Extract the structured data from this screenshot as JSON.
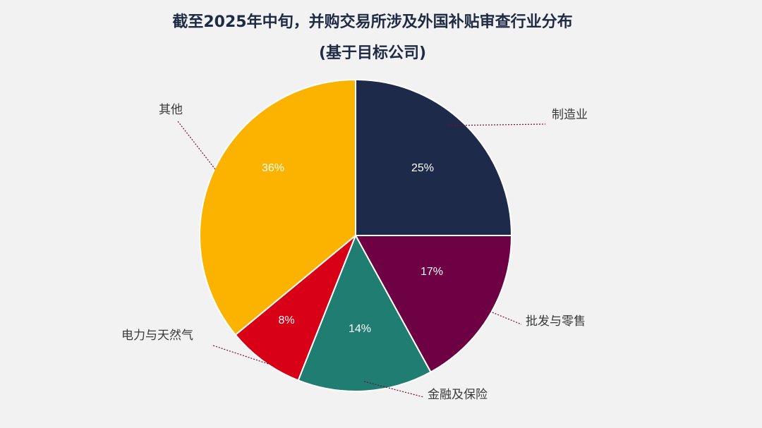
{
  "chart_data": {
    "type": "pie",
    "title": "截至2025年中旬，并购交易所涉及外国补贴审查行业分布",
    "subtitle": "(基于目标公司)",
    "slices": [
      {
        "label": "制造业",
        "value": 25,
        "display": "25%",
        "color": "#1e2a4a"
      },
      {
        "label": "批发与零售",
        "value": 17,
        "display": "17%",
        "color": "#6e0044"
      },
      {
        "label": "金融及保险",
        "value": 14,
        "display": "14%",
        "color": "#207d72"
      },
      {
        "label": "电力与天然气",
        "value": 8,
        "display": "8%",
        "color": "#d80016"
      },
      {
        "label": "其他",
        "value": 36,
        "display": "36%",
        "color": "#fbb300"
      }
    ],
    "start_angle_deg": 0,
    "direction": "clockwise"
  }
}
